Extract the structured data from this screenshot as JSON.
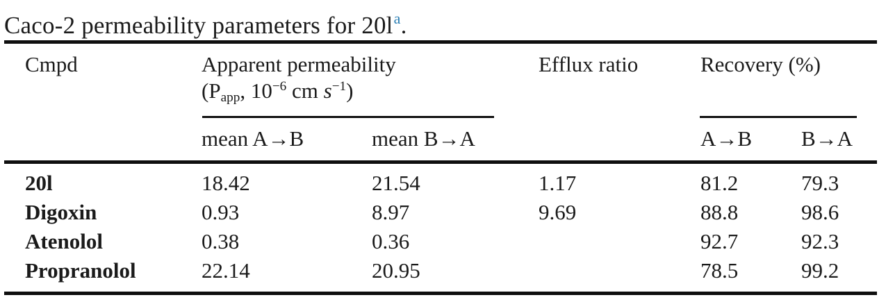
{
  "page": {
    "background": "#ffffff",
    "text_color": "#1a1a1a",
    "rule_color": "#0f0f0f",
    "footnote_color": "#2b7fb4"
  },
  "title": {
    "text": "Caco-2 permeability parameters for 20l",
    "footnote_marker": "a",
    "suffix": "."
  },
  "table": {
    "header": {
      "cmpd": "Cmpd",
      "apparent_permeability": {
        "line1": "Apparent permeability",
        "p1": "(P",
        "sub": "app",
        "p2": ", 10",
        "sup1": "−6",
        "p3": " cm ",
        "s_italic": "s",
        "sup2": "−1",
        "p4": ")"
      },
      "efflux_ratio": "Efflux ratio",
      "recovery": "Recovery (%)"
    },
    "subheader": {
      "mean_a_to_b": "mean A→B",
      "mean_b_to_a": "mean B→A",
      "recovery_a_to_b": "A→B",
      "recovery_b_to_a": "B→A"
    },
    "rows": [
      {
        "cmpd": "20l",
        "mean_a_to_b": "18.42",
        "mean_b_to_a": "21.54",
        "efflux_ratio": "1.17",
        "recovery_a_to_b": "81.2",
        "recovery_b_to_a": "79.3"
      },
      {
        "cmpd": "Digoxin",
        "mean_a_to_b": "0.93",
        "mean_b_to_a": "8.97",
        "efflux_ratio": "9.69",
        "recovery_a_to_b": "88.8",
        "recovery_b_to_a": "98.6"
      },
      {
        "cmpd": "Atenolol",
        "mean_a_to_b": "0.38",
        "mean_b_to_a": "0.36",
        "efflux_ratio": "",
        "recovery_a_to_b": "92.7",
        "recovery_b_to_a": "92.3"
      },
      {
        "cmpd": "Propranolol",
        "mean_a_to_b": "22.14",
        "mean_b_to_a": "20.95",
        "efflux_ratio": "",
        "recovery_a_to_b": "78.5",
        "recovery_b_to_a": "99.2"
      }
    ]
  }
}
